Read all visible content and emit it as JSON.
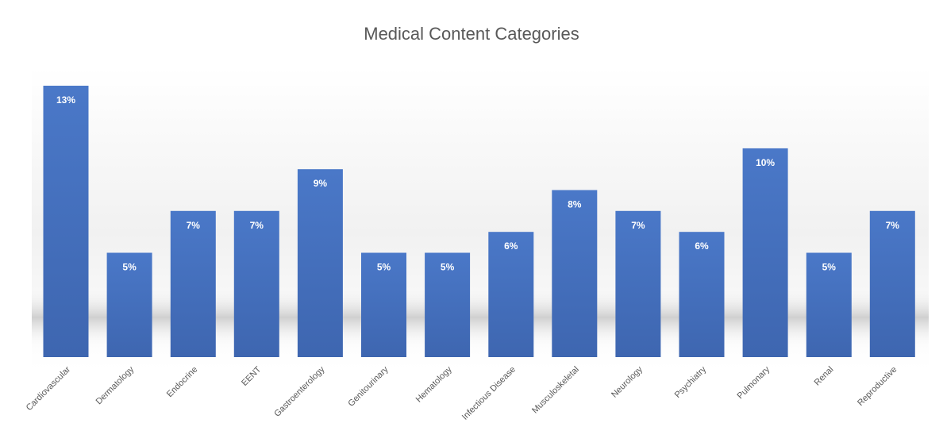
{
  "chart_data": {
    "type": "bar",
    "title": "Medical Content Categories",
    "categories": [
      "Cardiovascular",
      "Dermatology",
      "Endocrine",
      "EENT",
      "Gastroenterology",
      "Genitourinary",
      "Hematology",
      "Infectious Disease",
      "Musculoskeletal",
      "Neurology",
      "Psychiatry",
      "Pulmonary",
      "Renal",
      "Reproductive"
    ],
    "values": [
      13,
      5,
      7,
      7,
      9,
      5,
      5,
      6,
      8,
      7,
      6,
      10,
      5,
      7
    ],
    "data_labels": [
      "13%",
      "5%",
      "7%",
      "7%",
      "9%",
      "5%",
      "5%",
      "6%",
      "8%",
      "7%",
      "6%",
      "10%",
      "5%",
      "7%"
    ],
    "value_unit": "%",
    "ylim": [
      0,
      13
    ],
    "grid": false,
    "legend": "none",
    "bar_color": "#4472C4"
  }
}
